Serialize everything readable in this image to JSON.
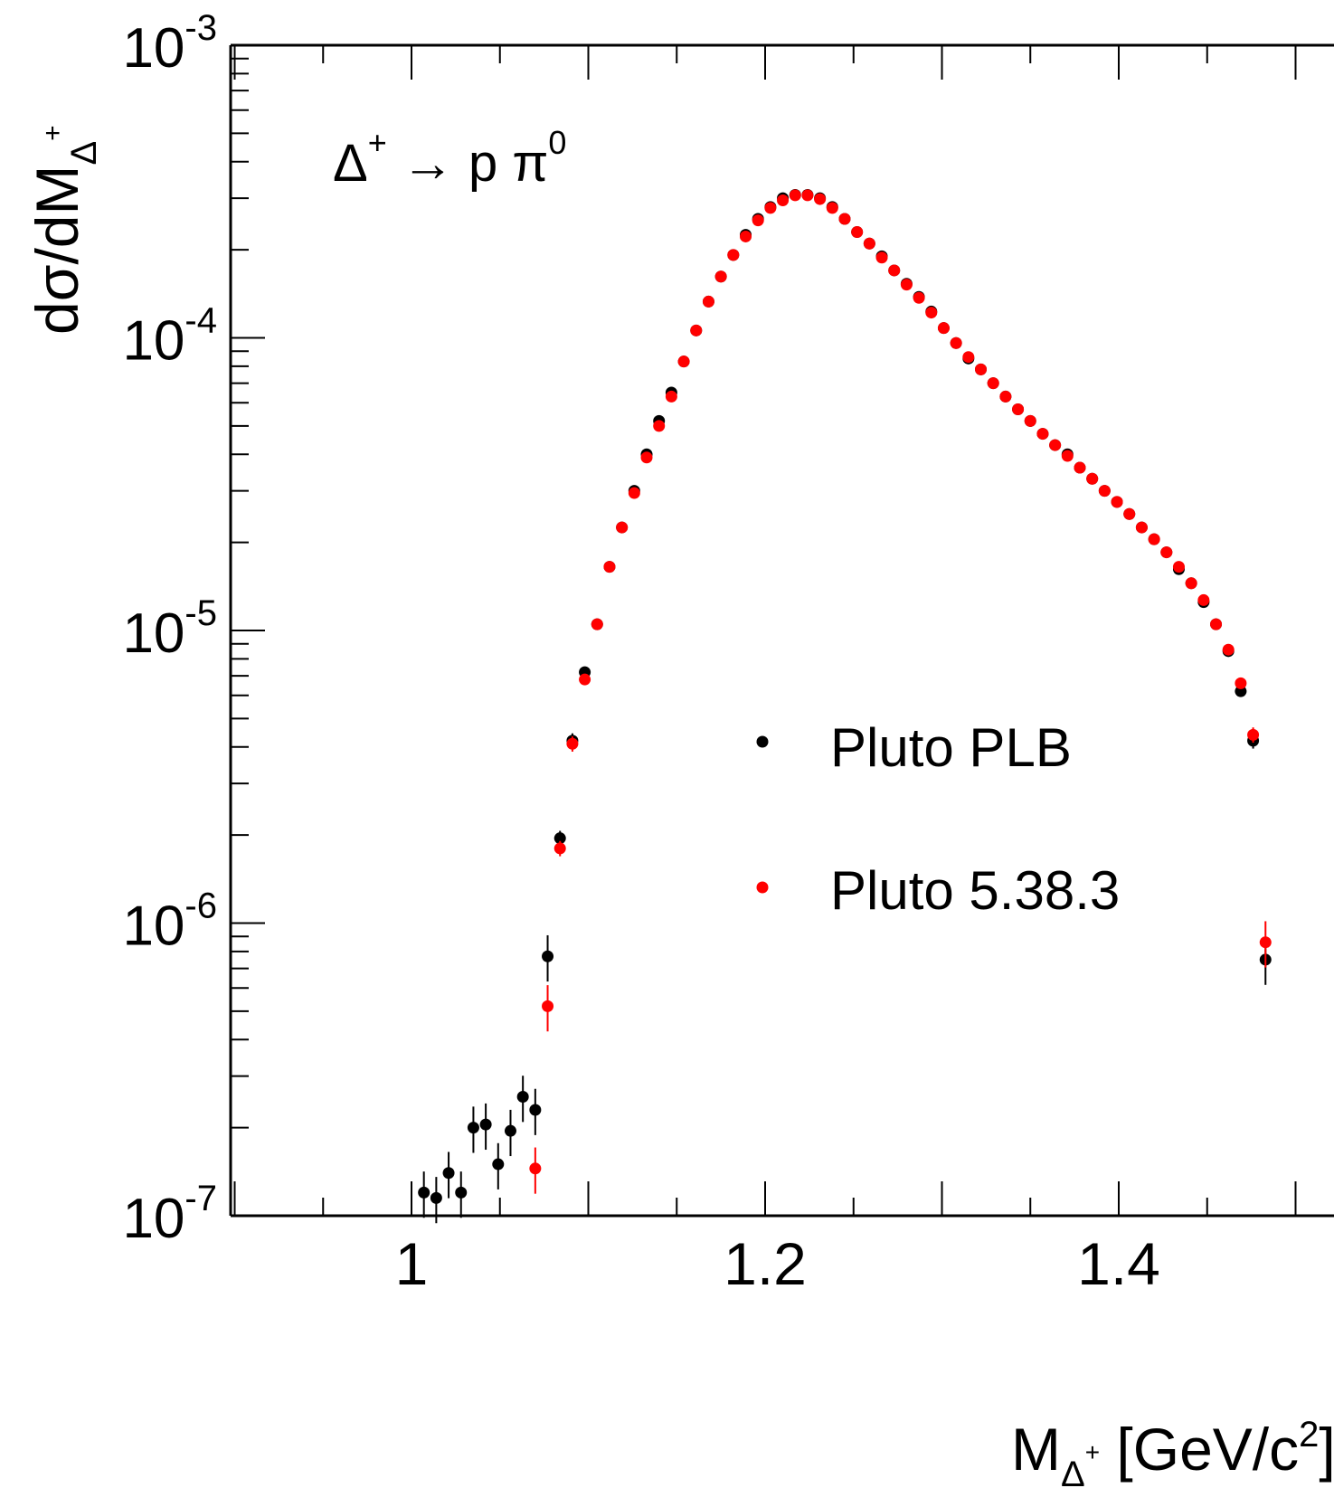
{
  "chart_data": {
    "type": "scatter",
    "xlabel": {
      "main": "M",
      "sub": "Δ",
      "subsup": "+",
      "rest": " [GeV/c",
      "rest_sup": "2",
      "rest_end": "]"
    },
    "ylabel": {
      "main": "dσ/dM",
      "sub": "Δ",
      "subsup": "+"
    },
    "annotation": {
      "base": "Δ",
      "sup": "+",
      "arrow": " → p π",
      "sup2": "0"
    },
    "xlim": [
      0.9,
      1.56
    ],
    "ylim": [
      1e-07,
      0.001
    ],
    "yscale": "log",
    "x_ticks": [
      "1",
      "1.2",
      "1.4"
    ],
    "y_ticks": [
      {
        "base": "10",
        "exp": "-3"
      },
      {
        "base": "10",
        "exp": "-4"
      },
      {
        "base": "10",
        "exp": "-5"
      },
      {
        "base": "10",
        "exp": "-6"
      },
      {
        "base": "10",
        "exp": "-7"
      }
    ],
    "legend_position": "center-right",
    "series": [
      {
        "name": "Pluto PLB",
        "color": "#000000",
        "points": [
          [
            1.007,
            1.2e-07
          ],
          [
            1.014,
            1.15e-07
          ],
          [
            1.021,
            1.4e-07
          ],
          [
            1.028,
            1.2e-07
          ],
          [
            1.035,
            2e-07
          ],
          [
            1.042,
            2.05e-07
          ],
          [
            1.049,
            1.5e-07
          ],
          [
            1.056,
            1.95e-07
          ],
          [
            1.063,
            2.55e-07
          ],
          [
            1.07,
            2.3e-07
          ],
          [
            1.077,
            7.7e-07
          ],
          [
            1.084,
            1.95e-06
          ],
          [
            1.091,
            4.2e-06
          ],
          [
            1.098,
            7.2e-06
          ],
          [
            1.105,
            1.05e-05
          ],
          [
            1.112,
            1.65e-05
          ],
          [
            1.119,
            2.25e-05
          ],
          [
            1.126,
            3e-05
          ],
          [
            1.133,
            4e-05
          ],
          [
            1.14,
            5.2e-05
          ],
          [
            1.147,
            6.5e-05
          ],
          [
            1.154,
            8.3e-05
          ],
          [
            1.161,
            0.000106
          ],
          [
            1.168,
            0.000133
          ],
          [
            1.175,
            0.000162
          ],
          [
            1.182,
            0.000192
          ],
          [
            1.189,
            0.000225
          ],
          [
            1.196,
            0.000255
          ],
          [
            1.203,
            0.00028
          ],
          [
            1.21,
            0.0003
          ],
          [
            1.217,
            0.000308
          ],
          [
            1.224,
            0.000308
          ],
          [
            1.231,
            0.0003
          ],
          [
            1.238,
            0.00028
          ],
          [
            1.245,
            0.000255
          ],
          [
            1.252,
            0.00023
          ],
          [
            1.259,
            0.00021
          ],
          [
            1.266,
            0.00019
          ],
          [
            1.273,
            0.00017
          ],
          [
            1.28,
            0.000153
          ],
          [
            1.287,
            0.000138
          ],
          [
            1.294,
            0.000123
          ],
          [
            1.301,
            0.000108
          ],
          [
            1.308,
            9.6e-05
          ],
          [
            1.315,
            8.5e-05
          ],
          [
            1.322,
            7.8e-05
          ],
          [
            1.329,
            7e-05
          ],
          [
            1.336,
            6.3e-05
          ],
          [
            1.343,
            5.7e-05
          ],
          [
            1.35,
            5.2e-05
          ],
          [
            1.357,
            4.7e-05
          ],
          [
            1.364,
            4.3e-05
          ],
          [
            1.371,
            4e-05
          ],
          [
            1.378,
            3.6e-05
          ],
          [
            1.385,
            3.3e-05
          ],
          [
            1.392,
            3e-05
          ],
          [
            1.399,
            2.75e-05
          ],
          [
            1.406,
            2.5e-05
          ],
          [
            1.413,
            2.25e-05
          ],
          [
            1.42,
            2.05e-05
          ],
          [
            1.427,
            1.85e-05
          ],
          [
            1.434,
            1.62e-05
          ],
          [
            1.441,
            1.45e-05
          ],
          [
            1.448,
            1.25e-05
          ],
          [
            1.455,
            1.05e-05
          ],
          [
            1.462,
            8.5e-06
          ],
          [
            1.469,
            6.2e-06
          ],
          [
            1.476,
            4.2e-06
          ],
          [
            1.483,
            7.5e-07
          ]
        ]
      },
      {
        "name": "Pluto 5.38.3",
        "color": "#ff0000",
        "points": [
          [
            1.07,
            1.45e-07
          ],
          [
            1.077,
            5.2e-07
          ],
          [
            1.084,
            1.8e-06
          ],
          [
            1.091,
            4.1e-06
          ],
          [
            1.098,
            6.8e-06
          ],
          [
            1.105,
            1.05e-05
          ],
          [
            1.112,
            1.65e-05
          ],
          [
            1.119,
            2.25e-05
          ],
          [
            1.126,
            2.95e-05
          ],
          [
            1.133,
            3.9e-05
          ],
          [
            1.14,
            5e-05
          ],
          [
            1.147,
            6.3e-05
          ],
          [
            1.154,
            8.3e-05
          ],
          [
            1.161,
            0.000106
          ],
          [
            1.168,
            0.000133
          ],
          [
            1.175,
            0.000162
          ],
          [
            1.182,
            0.000192
          ],
          [
            1.189,
            0.000222
          ],
          [
            1.196,
            0.000252
          ],
          [
            1.203,
            0.000278
          ],
          [
            1.21,
            0.000295
          ],
          [
            1.217,
            0.000307
          ],
          [
            1.224,
            0.000307
          ],
          [
            1.231,
            0.000298
          ],
          [
            1.238,
            0.000278
          ],
          [
            1.245,
            0.000255
          ],
          [
            1.252,
            0.00023
          ],
          [
            1.259,
            0.00021
          ],
          [
            1.266,
            0.000188
          ],
          [
            1.273,
            0.00017
          ],
          [
            1.28,
            0.000152
          ],
          [
            1.287,
            0.000137
          ],
          [
            1.294,
            0.000122
          ],
          [
            1.301,
            0.000108
          ],
          [
            1.308,
            9.6e-05
          ],
          [
            1.315,
            8.6e-05
          ],
          [
            1.322,
            7.8e-05
          ],
          [
            1.329,
            7e-05
          ],
          [
            1.336,
            6.3e-05
          ],
          [
            1.343,
            5.7e-05
          ],
          [
            1.35,
            5.2e-05
          ],
          [
            1.357,
            4.7e-05
          ],
          [
            1.364,
            4.3e-05
          ],
          [
            1.371,
            3.95e-05
          ],
          [
            1.378,
            3.6e-05
          ],
          [
            1.385,
            3.3e-05
          ],
          [
            1.392,
            3e-05
          ],
          [
            1.399,
            2.75e-05
          ],
          [
            1.406,
            2.5e-05
          ],
          [
            1.413,
            2.25e-05
          ],
          [
            1.42,
            2.05e-05
          ],
          [
            1.427,
            1.85e-05
          ],
          [
            1.434,
            1.65e-05
          ],
          [
            1.441,
            1.45e-05
          ],
          [
            1.448,
            1.27e-05
          ],
          [
            1.455,
            1.05e-05
          ],
          [
            1.462,
            8.6e-06
          ],
          [
            1.469,
            6.6e-06
          ],
          [
            1.476,
            4.4e-06
          ],
          [
            1.483,
            8.6e-07
          ]
        ]
      }
    ]
  }
}
